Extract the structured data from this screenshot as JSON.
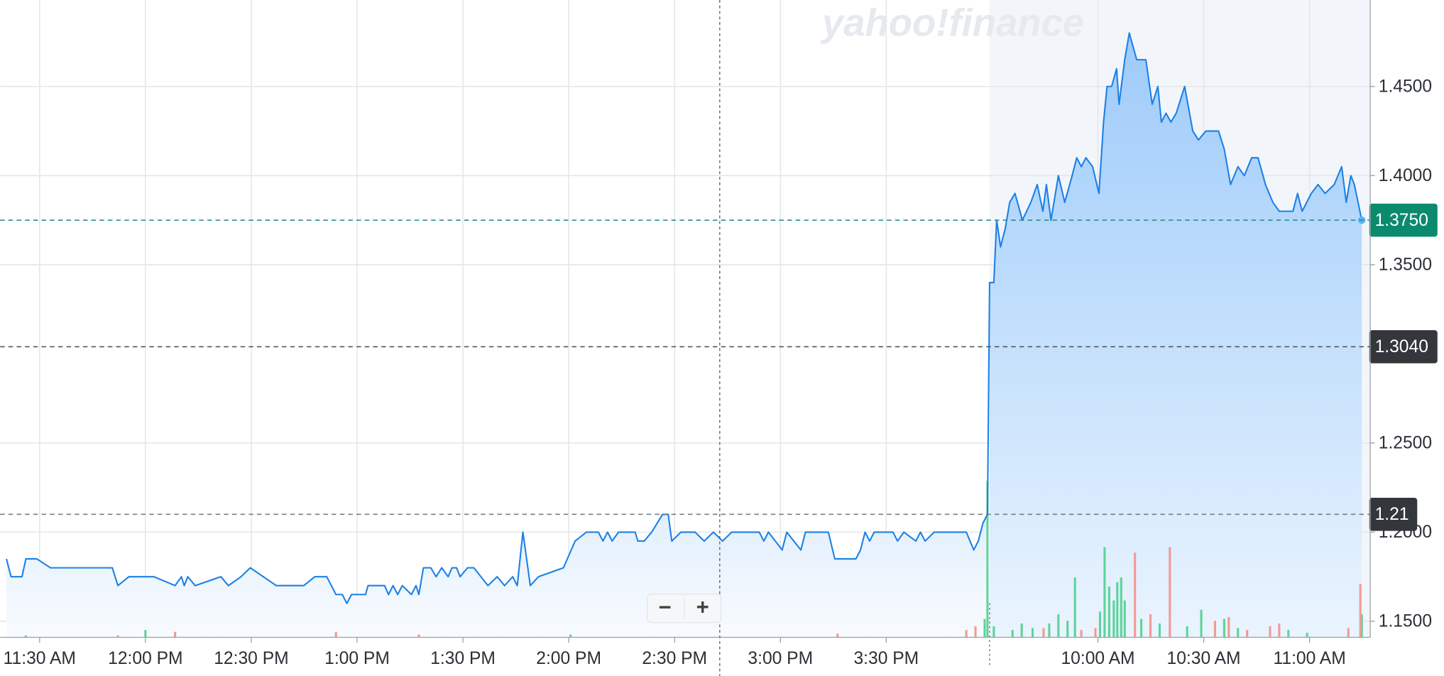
{
  "chart_data": {
    "type": "line",
    "watermark": "yahoo!finance",
    "color": "#1c80e6",
    "x": [
      -9.4,
      -8.1,
      -5.0,
      -3.9,
      -0.8,
      3.1,
      20.6,
      22.2,
      25.3,
      32.4,
      38.4,
      40.2,
      41.0,
      42.0,
      44.1,
      51.4,
      53.5,
      57.1,
      59.7,
      67.1,
      74.9,
      78.0,
      81.4,
      84.0,
      85.8,
      87.1,
      88.4,
      92.4,
      93.1,
      97.8,
      98.9,
      100.2,
      101.5,
      102.8,
      105.4,
      106.7,
      107.5,
      108.8,
      110.9,
      112.4,
      114.0,
      115.8,
      116.9,
      118.2,
      119.2,
      121.3,
      123.1,
      127.1,
      129.7,
      131.8,
      134.1,
      135.4,
      137.0,
      139.1,
      141.4,
      148.5,
      151.8,
      155.0,
      158.4,
      159.7,
      161.0,
      162.3,
      164.1,
      168.8,
      169.6,
      171.4,
      173.5,
      176.6,
      178.2,
      179.2,
      181.8,
      185.8,
      188.4,
      191.0,
      193.6,
      196.2,
      204.0,
      205.3,
      206.6,
      210.5,
      211.8,
      215.8,
      217.1,
      223.6,
      225.4,
      231.4,
      232.7,
      234.0,
      235.3,
      236.6,
      241.9,
      243.2,
      245.0,
      248.4,
      249.7,
      251.0,
      253.6,
      262.7,
      264.8,
      266.1,
      267.4,
      268.7,
      269.3,
      270.5,
      271.3,
      272.4,
      273.7,
      275.0,
      276.5,
      278.6,
      281.0,
      282.8,
      284.4,
      285.4,
      286.7,
      288.8,
      290.6,
      292.7,
      294.0,
      295.3,
      296.6,
      298.5,
      300.3,
      301.6,
      302.6,
      303.9,
      305.3,
      306.0,
      307.6,
      308.9,
      311.0,
      313.6,
      315.4,
      317.0,
      318.0,
      319.3,
      320.7,
      322.2,
      324.6,
      326.9,
      328.5,
      330.6,
      334.2,
      335.8,
      337.6,
      339.7,
      341.5,
      343.6,
      345.4,
      347.5,
      349.6,
      351.4,
      355.3,
      356.6,
      357.9,
      360.5,
      362.4,
      364.4,
      367.0,
      369.1,
      370.4,
      371.7,
      372.7,
      374.8
    ],
    "values": [
      1.185,
      1.175,
      1.175,
      1.185,
      1.185,
      1.18,
      1.18,
      1.17,
      1.175,
      1.175,
      1.17,
      1.175,
      1.17,
      1.175,
      1.17,
      1.175,
      1.17,
      1.175,
      1.18,
      1.17,
      1.17,
      1.175,
      1.175,
      1.165,
      1.165,
      1.16,
      1.165,
      1.165,
      1.17,
      1.17,
      1.165,
      1.17,
      1.165,
      1.17,
      1.165,
      1.17,
      1.165,
      1.18,
      1.18,
      1.175,
      1.18,
      1.175,
      1.18,
      1.18,
      1.175,
      1.18,
      1.18,
      1.17,
      1.175,
      1.17,
      1.175,
      1.17,
      1.2,
      1.17,
      1.175,
      1.18,
      1.195,
      1.2,
      1.2,
      1.195,
      1.2,
      1.195,
      1.2,
      1.2,
      1.195,
      1.195,
      1.2,
      1.21,
      1.21,
      1.195,
      1.2,
      1.2,
      1.195,
      1.2,
      1.195,
      1.2,
      1.2,
      1.195,
      1.2,
      1.19,
      1.2,
      1.19,
      1.2,
      1.2,
      1.185,
      1.185,
      1.19,
      1.2,
      1.195,
      1.2,
      1.2,
      1.195,
      1.2,
      1.195,
      1.2,
      1.195,
      1.2,
      1.2,
      1.19,
      1.195,
      1.205,
      1.21,
      1.34,
      1.34,
      1.375,
      1.36,
      1.37,
      1.385,
      1.39,
      1.375,
      1.385,
      1.395,
      1.38,
      1.395,
      1.375,
      1.4,
      1.385,
      1.4,
      1.41,
      1.405,
      1.41,
      1.405,
      1.39,
      1.43,
      1.45,
      1.45,
      1.46,
      1.44,
      1.465,
      1.48,
      1.465,
      1.465,
      1.44,
      1.45,
      1.43,
      1.435,
      1.43,
      1.435,
      1.45,
      1.425,
      1.42,
      1.425,
      1.425,
      1.415,
      1.395,
      1.405,
      1.4,
      1.41,
      1.41,
      1.395,
      1.385,
      1.38,
      1.38,
      1.39,
      1.38,
      1.39,
      1.395,
      1.39,
      1.395,
      1.405,
      1.385,
      1.4,
      1.395,
      1.375
    ],
    "session_start": 269.3,
    "xlim": [
      -11.2,
      377.2
    ],
    "xticks": [
      {
        "value": 0,
        "label": "11:30 AM"
      },
      {
        "value": 30,
        "label": "12:00 PM"
      },
      {
        "value": 60,
        "label": "12:30 PM"
      },
      {
        "value": 90,
        "label": "1:00 PM"
      },
      {
        "value": 120,
        "label": "1:30 PM"
      },
      {
        "value": 150,
        "label": "2:00 PM"
      },
      {
        "value": 180,
        "label": "2:30 PM"
      },
      {
        "value": 210,
        "label": "3:00 PM"
      },
      {
        "value": 240,
        "label": "3:30 PM"
      },
      {
        "value": 300,
        "label": "10:00 AM"
      },
      {
        "value": 330,
        "label": "10:30 AM"
      },
      {
        "value": 360,
        "label": "11:00 AM"
      }
    ],
    "ylim": [
      1.141,
      1.4985
    ],
    "yticks": [
      {
        "value": 1.45,
        "label": "1.4500"
      },
      {
        "value": 1.4,
        "label": "1.4000"
      },
      {
        "value": 1.35,
        "label": "1.3500"
      },
      {
        "value": 1.25,
        "label": "1.2500"
      },
      {
        "value": 1.2,
        "label": "1.2000"
      },
      {
        "value": 1.15,
        "label": "1.1500"
      }
    ],
    "grid": true,
    "price_tags": [
      {
        "value": 1.375,
        "label": "1.3750",
        "color": "#0b8a6e",
        "line_color": "#2a8f8f"
      },
      {
        "value": 1.304,
        "label": "1.3040",
        "color": "#33363b",
        "line_color": "#55585d"
      },
      {
        "value": 1.21,
        "label": "1.21",
        "color": "#33363b",
        "line_color": "#7a7d82"
      }
    ],
    "crosshair_x": 192.8,
    "y2lim": [
      0,
      692
    ],
    "volume_up": {
      "color": "#5fd39a",
      "x": [
        -3.9,
        30.0,
        150.5,
        267.9,
        268.7,
        270.5,
        275.8,
        278.4,
        281.5,
        286.2,
        288.8,
        291.4,
        293.5,
        300.6,
        301.9,
        303.2,
        304.5,
        305.5,
        306.6,
        307.6,
        312.3,
        317.5,
        325.3,
        329.3,
        335.8,
        339.7,
        354.0,
        359.3,
        374.8
      ],
      "values": [
        2,
        8,
        3,
        20,
        170,
        12,
        8,
        15,
        10,
        15,
        25,
        18,
        65,
        28,
        98,
        55,
        40,
        60,
        65,
        40,
        20,
        15,
        12,
        30,
        20,
        10,
        8,
        5,
        25
      ]
    },
    "volume_down": {
      "color": "#f39a93",
      "x": [
        22.2,
        38.4,
        84.0,
        107.5,
        226.2,
        262.7,
        265.3,
        284.6,
        295.3,
        299.3,
        310.5,
        314.9,
        320.4,
        333.2,
        337.1,
        342.3,
        348.8,
        351.4,
        371.0,
        374.4
      ],
      "values": [
        2,
        6,
        6,
        3,
        4,
        8,
        12,
        10,
        8,
        10,
        92,
        25,
        98,
        18,
        22,
        8,
        12,
        15,
        10,
        58
      ]
    },
    "zoom": {
      "out": "−",
      "in": "+"
    }
  }
}
